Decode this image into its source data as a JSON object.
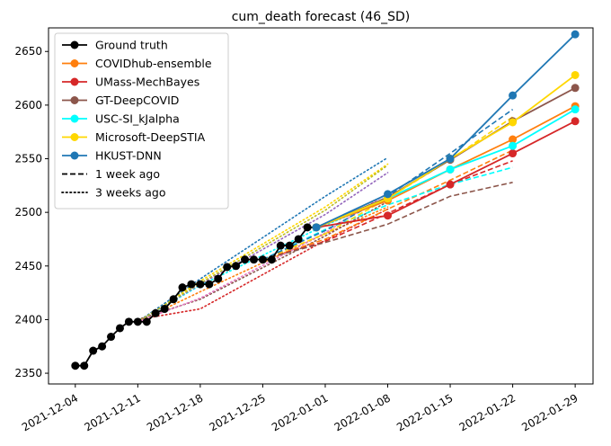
{
  "chart_data": {
    "type": "line",
    "title": "cum_death forecast (46_SD)",
    "xlabel": "",
    "ylabel": "",
    "x_range": [
      "2021-12-01",
      "2022-01-31"
    ],
    "y_range": [
      2340,
      2672
    ],
    "x_ticks": [
      "2021-12-04",
      "2021-12-11",
      "2021-12-18",
      "2021-12-25",
      "2022-01-01",
      "2022-01-08",
      "2022-01-15",
      "2022-01-22",
      "2022-01-29"
    ],
    "y_ticks": [
      2350,
      2400,
      2450,
      2500,
      2550,
      2600,
      2650
    ],
    "grid": false,
    "legend_position": "top-left",
    "ground_truth": {
      "name": "Ground truth",
      "color": "#000000",
      "points": [
        [
          "2021-12-04",
          2357
        ],
        [
          "2021-12-05",
          2357
        ],
        [
          "2021-12-06",
          2371
        ],
        [
          "2021-12-07",
          2375
        ],
        [
          "2021-12-08",
          2384
        ],
        [
          "2021-12-09",
          2392
        ],
        [
          "2021-12-10",
          2398
        ],
        [
          "2021-12-11",
          2398
        ],
        [
          "2021-12-12",
          2398
        ],
        [
          "2021-12-13",
          2406
        ],
        [
          "2021-12-14",
          2410
        ],
        [
          "2021-12-15",
          2419
        ],
        [
          "2021-12-16",
          2430
        ],
        [
          "2021-12-17",
          2433
        ],
        [
          "2021-12-18",
          2433
        ],
        [
          "2021-12-19",
          2433
        ],
        [
          "2021-12-20",
          2438
        ],
        [
          "2021-12-21",
          2449
        ],
        [
          "2021-12-22",
          2450
        ],
        [
          "2021-12-23",
          2456
        ],
        [
          "2021-12-24",
          2456
        ],
        [
          "2021-12-25",
          2456
        ],
        [
          "2021-12-26",
          2456
        ],
        [
          "2021-12-27",
          2469
        ],
        [
          "2021-12-28",
          2469
        ],
        [
          "2021-12-29",
          2475
        ],
        [
          "2021-12-30",
          2486
        ],
        [
          "2021-12-31",
          2486
        ]
      ]
    },
    "series": [
      {
        "name": "COVIDhub-ensemble",
        "color": "#ff7f0e",
        "current": [
          [
            "2021-12-31",
            2486
          ],
          [
            "2022-01-08",
            2511
          ],
          [
            "2022-01-15",
            2540
          ],
          [
            "2022-01-22",
            2568
          ],
          [
            "2022-01-29",
            2599
          ]
        ],
        "one_week_ago": [
          [
            "2021-12-25",
            2456
          ],
          [
            "2022-01-01",
            2475
          ],
          [
            "2022-01-08",
            2503
          ],
          [
            "2022-01-15",
            2530
          ],
          [
            "2022-01-22",
            2558
          ]
        ],
        "three_weeks_ago": [
          [
            "2021-12-11",
            2398
          ],
          [
            "2021-12-18",
            2426
          ],
          [
            "2022-01-01",
            2480
          ],
          [
            "2022-01-08",
            2505
          ]
        ]
      },
      {
        "name": "UMass-MechBayes",
        "color": "#d62728",
        "current": [
          [
            "2021-12-31",
            2486
          ],
          [
            "2022-01-08",
            2497
          ],
          [
            "2022-01-15",
            2526
          ],
          [
            "2022-01-22",
            2555
          ],
          [
            "2022-01-29",
            2585
          ]
        ],
        "one_week_ago": [
          [
            "2021-12-25",
            2456
          ],
          [
            "2022-01-01",
            2473
          ],
          [
            "2022-01-08",
            2499
          ],
          [
            "2022-01-15",
            2526
          ],
          [
            "2022-01-22",
            2548
          ]
        ],
        "three_weeks_ago": [
          [
            "2021-12-11",
            2400
          ],
          [
            "2021-12-18",
            2410
          ],
          [
            "2022-01-01",
            2474
          ],
          [
            "2022-01-08",
            2503
          ]
        ]
      },
      {
        "name": "GT-DeepCOVID",
        "color": "#8c564b",
        "current": [
          [
            "2021-12-31",
            2486
          ],
          [
            "2022-01-08",
            2514
          ],
          [
            "2022-01-15",
            2549
          ],
          [
            "2022-01-22",
            2585
          ],
          [
            "2022-01-29",
            2616
          ]
        ],
        "one_week_ago": [
          [
            "2021-12-25",
            2456
          ],
          [
            "2022-01-01",
            2472
          ],
          [
            "2022-01-08",
            2489
          ],
          [
            "2022-01-15",
            2515
          ],
          [
            "2022-01-22",
            2528
          ]
        ],
        "three_weeks_ago": [
          [
            "2021-12-11",
            2400
          ],
          [
            "2021-12-18",
            2419
          ],
          [
            "2022-01-01",
            2478
          ],
          [
            "2022-01-08",
            2510
          ]
        ]
      },
      {
        "name": "USC-SI_kJalpha",
        "color": "#00ffff",
        "current": [
          [
            "2021-12-31",
            2486
          ],
          [
            "2022-01-08",
            2513
          ],
          [
            "2022-01-15",
            2540
          ],
          [
            "2022-01-22",
            2562
          ],
          [
            "2022-01-29",
            2596
          ]
        ],
        "one_week_ago": [
          [
            "2021-12-25",
            2456
          ],
          [
            "2022-01-01",
            2484
          ],
          [
            "2022-01-08",
            2507
          ],
          [
            "2022-01-15",
            2526
          ],
          [
            "2022-01-22",
            2542
          ]
        ],
        "three_weeks_ago": [
          [
            "2021-12-11",
            2398
          ],
          [
            "2021-12-18",
            2432
          ],
          [
            "2022-01-01",
            2488
          ],
          [
            "2022-01-08",
            2512
          ]
        ]
      },
      {
        "name": "Microsoft-DeepSTIA",
        "color": "#ffd700",
        "current": [
          [
            "2021-12-31",
            2486
          ],
          [
            "2022-01-08",
            2513
          ],
          [
            "2022-01-15",
            2550
          ],
          [
            "2022-01-22",
            2584
          ],
          [
            "2022-01-29",
            2628
          ]
        ],
        "one_week_ago": [
          [
            "2021-12-25",
            2456
          ],
          [
            "2022-01-01",
            2480
          ],
          [
            "2022-01-08",
            2513
          ],
          [
            "2022-01-15",
            2549
          ],
          [
            "2022-01-22",
            2589
          ]
        ],
        "three_weeks_ago": [
          [
            "2021-12-11",
            2398
          ],
          [
            "2021-12-18",
            2436
          ],
          [
            "2022-01-01",
            2505
          ],
          [
            "2022-01-08",
            2545
          ]
        ]
      },
      {
        "name": "HKUST-DNN",
        "color": "#1f77b4",
        "current": [
          [
            "2021-12-31",
            2486
          ],
          [
            "2022-01-08",
            2517
          ],
          [
            "2022-01-15",
            2550
          ],
          [
            "2022-01-22",
            2609
          ],
          [
            "2022-01-29",
            2666
          ]
        ],
        "one_week_ago": [
          [
            "2021-12-25",
            2456
          ],
          [
            "2022-01-01",
            2483
          ],
          [
            "2022-01-08",
            2515
          ],
          [
            "2022-01-15",
            2555
          ],
          [
            "2022-01-22",
            2596
          ]
        ],
        "three_weeks_ago": [
          [
            "2021-12-11",
            2398
          ],
          [
            "2021-12-18",
            2438
          ],
          [
            "2022-01-01",
            2515
          ],
          [
            "2022-01-08",
            2551
          ]
        ]
      }
    ],
    "extra_three_week_lines": [
      {
        "color": "#9467bd",
        "points": [
          [
            "2021-12-11",
            2398
          ],
          [
            "2021-12-18",
            2433
          ],
          [
            "2022-01-01",
            2498
          ],
          [
            "2022-01-08",
            2537
          ]
        ]
      },
      {
        "color": "#bcbd22",
        "points": [
          [
            "2021-12-11",
            2398
          ],
          [
            "2021-12-18",
            2434
          ],
          [
            "2022-01-01",
            2502
          ],
          [
            "2022-01-08",
            2544
          ]
        ]
      },
      {
        "color": "#e377c2",
        "points": [
          [
            "2021-12-11",
            2398
          ],
          [
            "2021-12-18",
            2420
          ],
          [
            "2022-01-01",
            2481
          ],
          [
            "2022-01-08",
            2518
          ]
        ]
      }
    ],
    "legend": [
      {
        "label": "Ground truth",
        "color": "#000000",
        "style": "solid-marker"
      },
      {
        "label": "COVIDhub-ensemble",
        "color": "#ff7f0e",
        "style": "solid-marker"
      },
      {
        "label": "UMass-MechBayes",
        "color": "#d62728",
        "style": "solid-marker"
      },
      {
        "label": "GT-DeepCOVID",
        "color": "#8c564b",
        "style": "solid-marker"
      },
      {
        "label": "USC-SI_kJalpha",
        "color": "#00ffff",
        "style": "solid-marker"
      },
      {
        "label": "Microsoft-DeepSTIA",
        "color": "#ffd700",
        "style": "solid-marker"
      },
      {
        "label": "HKUST-DNN",
        "color": "#1f77b4",
        "style": "solid-marker"
      },
      {
        "label": "1 week ago",
        "color": "#000000",
        "style": "dashed"
      },
      {
        "label": "3 weeks ago",
        "color": "#000000",
        "style": "dotted"
      }
    ]
  }
}
